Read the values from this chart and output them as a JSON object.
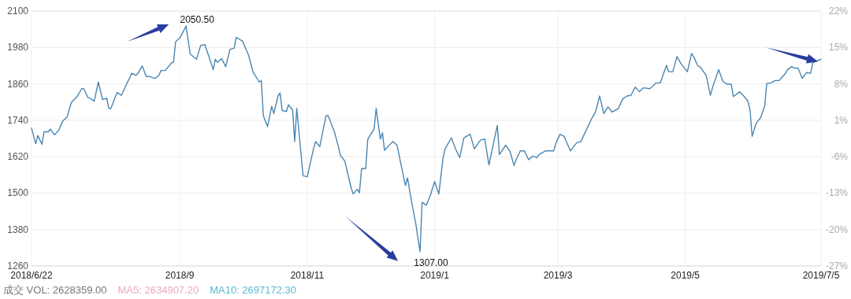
{
  "chart_data": {
    "type": "line",
    "annotations": [
      {
        "text": "2050.50",
        "x": "2018-09-04",
        "y": 2050.5
      },
      {
        "text": "1307.00",
        "x": "2018-12-25",
        "y": 1307
      },
      "成交 VOL: 2628359.00",
      "MA5: 2634907.20",
      "MA10: 2697172.30"
    ],
    "x": [
      "2018-06-22",
      "2018-06-24",
      "2018-06-25",
      "2018-06-27",
      "2018-06-28",
      "2018-06-30",
      "2018-07-01",
      "2018-07-03",
      "2018-07-05",
      "2018-07-07",
      "2018-07-09",
      "2018-07-11",
      "2018-07-14",
      "2018-07-16",
      "2018-07-17",
      "2018-07-19",
      "2018-07-20",
      "2018-07-22",
      "2018-07-24",
      "2018-07-26",
      "2018-07-28",
      "2018-07-29",
      "2018-07-30",
      "2018-08-02",
      "2018-08-04",
      "2018-08-09",
      "2018-08-11",
      "2018-08-12",
      "2018-08-14",
      "2018-08-16",
      "2018-08-17",
      "2018-08-20",
      "2018-08-22",
      "2018-08-23",
      "2018-08-25",
      "2018-08-28",
      "2018-08-29",
      "2018-08-30",
      "2018-09-01",
      "2018-09-04",
      "2018-09-06",
      "2018-09-09",
      "2018-09-11",
      "2018-09-13",
      "2018-09-17",
      "2018-09-18",
      "2018-09-19",
      "2018-09-21",
      "2018-09-23",
      "2018-09-25",
      "2018-09-27",
      "2018-09-28",
      "2018-10-01",
      "2018-10-04",
      "2018-10-06",
      "2018-10-09",
      "2018-10-10",
      "2018-10-11",
      "2018-10-13",
      "2018-10-15",
      "2018-10-16",
      "2018-10-18",
      "2018-10-19",
      "2018-10-20",
      "2018-10-22",
      "2018-10-23",
      "2018-10-25",
      "2018-10-26",
      "2018-10-27",
      "2018-10-30",
      "2018-11-01",
      "2018-11-04",
      "2018-11-05",
      "2018-11-07",
      "2018-11-10",
      "2018-11-11",
      "2018-11-14",
      "2018-11-16",
      "2018-11-17",
      "2018-11-18",
      "2018-11-19",
      "2018-11-22",
      "2018-11-23",
      "2018-11-25",
      "2018-11-26",
      "2018-11-27",
      "2018-11-29",
      "2018-11-30",
      "2018-12-03",
      "2018-12-04",
      "2018-12-06",
      "2018-12-07",
      "2018-12-08",
      "2018-12-12",
      "2018-12-14",
      "2018-12-16",
      "2018-12-18",
      "2018-12-19",
      "2018-12-21",
      "2018-12-23",
      "2018-12-25",
      "2018-12-26",
      "2018-12-28",
      "2018-12-30",
      "2019-01-01",
      "2019-01-03",
      "2019-01-05",
      "2019-01-06",
      "2019-01-09",
      "2019-01-11",
      "2019-01-13",
      "2019-01-15",
      "2019-01-18",
      "2019-01-20",
      "2019-01-23",
      "2019-01-25",
      "2019-01-27",
      "2019-01-31",
      "2019-02-01",
      "2019-02-04",
      "2019-02-06",
      "2019-02-08",
      "2019-02-09",
      "2019-02-11",
      "2019-02-13",
      "2019-02-15",
      "2019-02-17",
      "2019-02-19",
      "2019-02-20",
      "2019-02-23",
      "2019-02-27",
      "2019-02-28",
      "2019-03-02",
      "2019-03-04",
      "2019-03-07",
      "2019-03-10",
      "2019-03-12",
      "2019-03-14",
      "2019-03-17",
      "2019-03-19",
      "2019-03-21",
      "2019-03-23",
      "2019-03-25",
      "2019-03-27",
      "2019-03-30",
      "2019-04-01",
      "2019-04-03",
      "2019-04-05",
      "2019-04-07",
      "2019-04-09",
      "2019-04-11",
      "2019-04-14",
      "2019-04-17",
      "2019-04-19",
      "2019-04-22",
      "2019-04-23",
      "2019-04-25",
      "2019-04-27",
      "2019-04-29",
      "2019-05-02",
      "2019-05-04",
      "2019-05-05",
      "2019-05-07",
      "2019-05-08",
      "2019-05-11",
      "2019-05-13",
      "2019-05-14",
      "2019-05-17",
      "2019-05-19",
      "2019-05-21",
      "2019-05-23",
      "2019-05-24",
      "2019-05-27",
      "2019-05-29",
      "2019-05-31",
      "2019-06-01",
      "2019-06-02",
      "2019-06-04",
      "2019-06-06",
      "2019-06-08",
      "2019-06-09",
      "2019-06-11",
      "2019-06-13",
      "2019-06-15",
      "2019-06-18",
      "2019-06-19",
      "2019-06-21",
      "2019-06-22",
      "2019-06-24",
      "2019-06-26",
      "2019-06-28",
      "2019-06-30",
      "2019-07-01",
      "2019-07-03",
      "2019-07-05"
    ],
    "series": [
      {
        "color": "#4a86b2",
        "values": [
          1714,
          1663,
          1690,
          1661,
          1702,
          1702,
          1711,
          1692,
          1707,
          1738,
          1750,
          1798,
          1820,
          1844,
          1844,
          1815,
          1813,
          1803,
          1866,
          1808,
          1813,
          1779,
          1779,
          1832,
          1822,
          1895,
          1888,
          1895,
          1919,
          1883,
          1885,
          1878,
          1888,
          1904,
          1904,
          1929,
          1931,
          1999,
          2011,
          2050.5,
          1958,
          1941,
          1987,
          1989,
          1907,
          1941,
          1931,
          1943,
          1917,
          1974,
          1977,
          2013,
          2001,
          1953,
          1900,
          1866,
          1871,
          1755,
          1719,
          1786,
          1762,
          1820,
          1830,
          1772,
          1769,
          1791,
          1774,
          1670,
          1779,
          1557,
          1554,
          1646,
          1670,
          1653,
          1755,
          1755,
          1702,
          1651,
          1622,
          1615,
          1605,
          1518,
          1497,
          1513,
          1501,
          1581,
          1581,
          1678,
          1711,
          1779,
          1678,
          1699,
          1641,
          1670,
          1658,
          1591,
          1525,
          1550,
          1470,
          1398,
          1307,
          1470,
          1460,
          1494,
          1538,
          1497,
          1615,
          1646,
          1682,
          1646,
          1617,
          1682,
          1694,
          1646,
          1675,
          1678,
          1593,
          1723,
          1627,
          1658,
          1639,
          1591,
          1610,
          1639,
          1639,
          1610,
          1622,
          1617,
          1627,
          1639,
          1639,
          1663,
          1694,
          1687,
          1639,
          1666,
          1670,
          1699,
          1743,
          1767,
          1820,
          1762,
          1784,
          1767,
          1779,
          1810,
          1820,
          1822,
          1849,
          1834,
          1847,
          1844,
          1863,
          1863,
          1921,
          1900,
          1900,
          1950,
          1926,
          1900,
          1960,
          1950,
          1919,
          1917,
          1888,
          1822,
          1847,
          1907,
          1868,
          1859,
          1859,
          1818,
          1834,
          1820,
          1803,
          1774,
          1687,
          1731,
          1748,
          1786,
          1861,
          1863,
          1871,
          1871,
          1895,
          1907,
          1917,
          1912,
          1912,
          1878,
          1897,
          1895,
          1929,
          1936,
          1941
        ]
      }
    ],
    "xlim": [
      "2018-06-22",
      "2019-07-05"
    ],
    "xticks": [
      {
        "value": "2018-06-22",
        "label": "2018/6/22"
      },
      {
        "value": "2018-09-01",
        "label": "2018/9"
      },
      {
        "value": "2018-11-01",
        "label": "2018/11"
      },
      {
        "value": "2019-01-01",
        "label": "2019/1"
      },
      {
        "value": "2019-03-01",
        "label": "2019/3"
      },
      {
        "value": "2019-05-01",
        "label": "2019/5"
      },
      {
        "value": "2019-07-05",
        "label": "2019/7/5"
      }
    ],
    "ylim": [
      1260,
      2100
    ],
    "yticks": [
      1260,
      1380,
      1500,
      1620,
      1740,
      1860,
      1980,
      2100
    ],
    "y2lim": [
      -27,
      22
    ],
    "y2ticks": [
      {
        "value": -27,
        "label": "-27%"
      },
      {
        "value": -20,
        "label": "-20%"
      },
      {
        "value": -13,
        "label": "-13%"
      },
      {
        "value": -6,
        "label": "-6%"
      },
      {
        "value": 1,
        "label": "1%"
      },
      {
        "value": 8,
        "label": "8%"
      },
      {
        "value": 15,
        "label": "15%"
      },
      {
        "value": 22,
        "label": "22%"
      }
    ],
    "grid": true
  }
}
